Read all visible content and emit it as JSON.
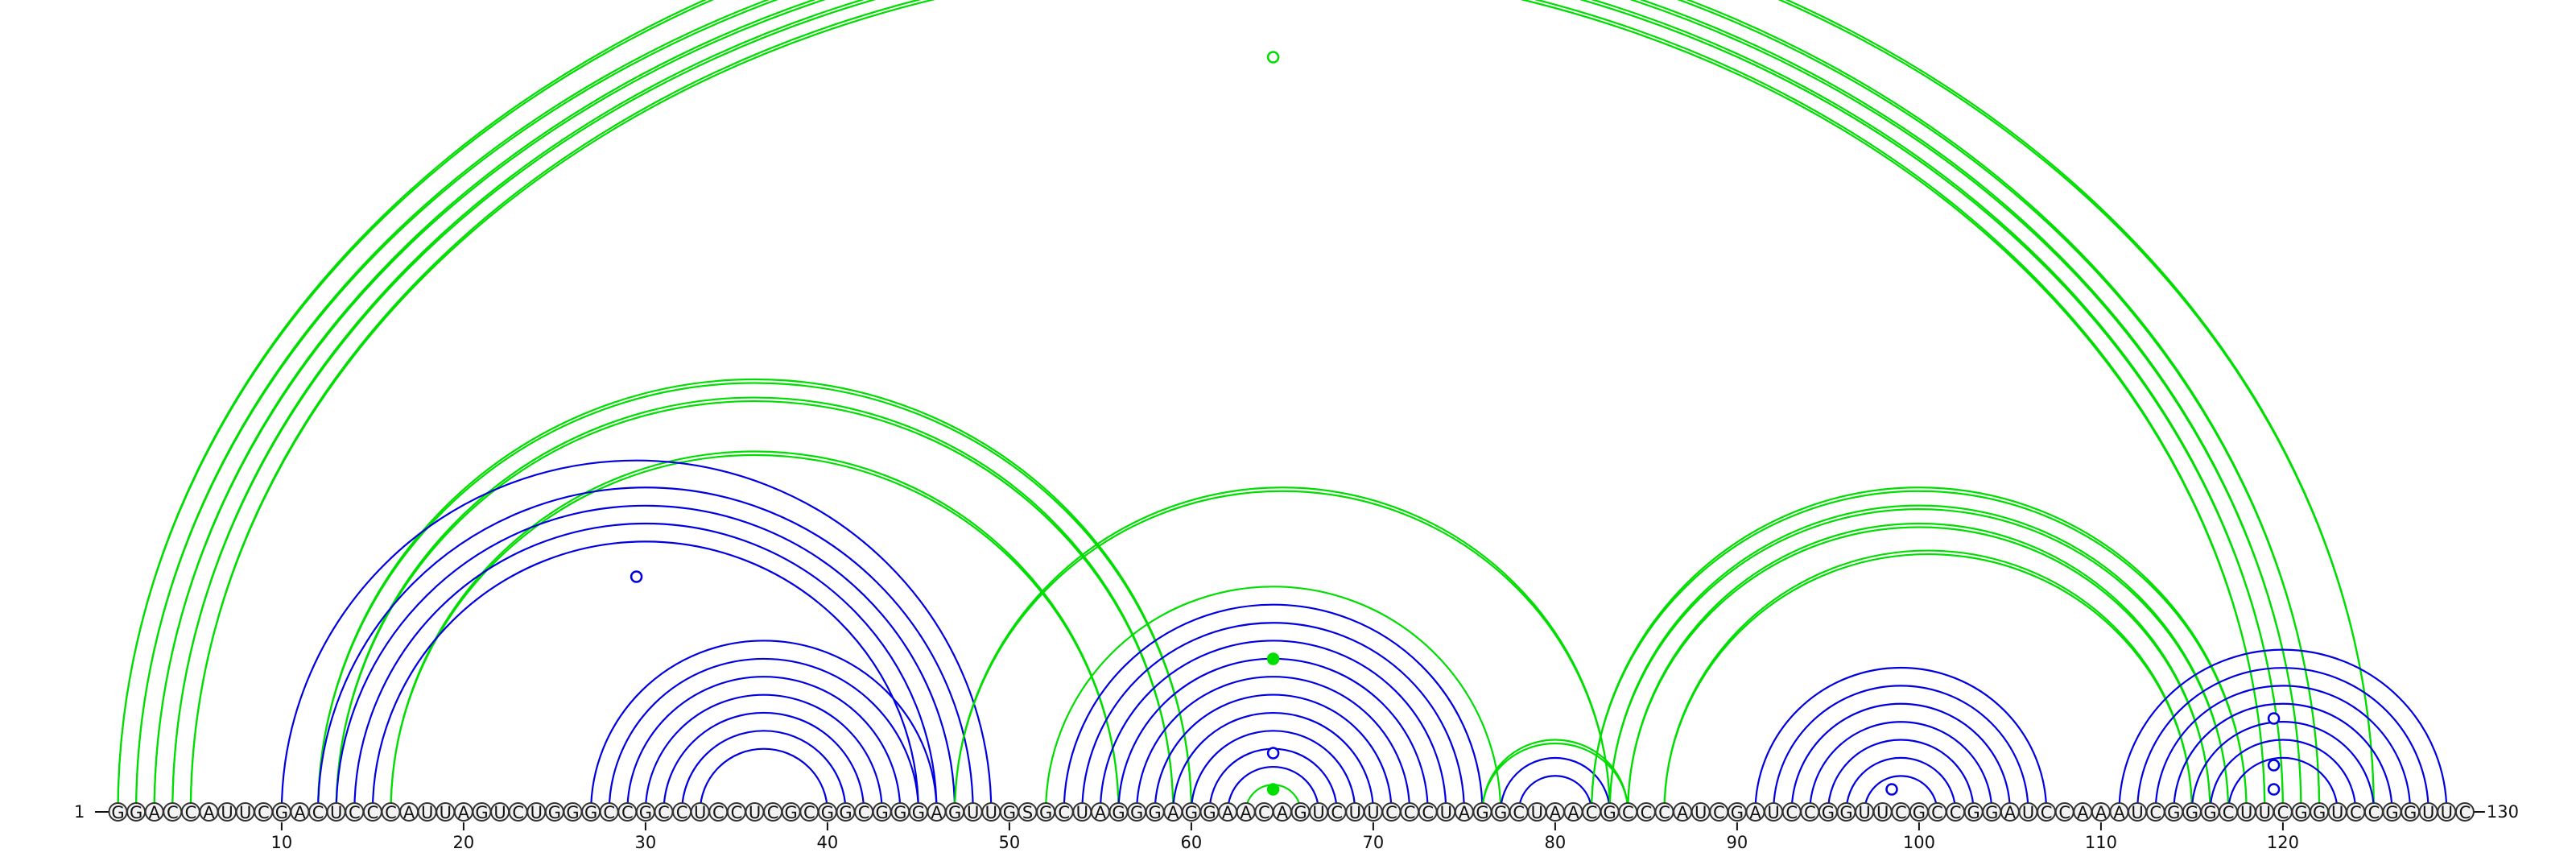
{
  "sequence": "GGACCAUUCGACUCCCAUUAGUCUGGGCCGCCUCCUCGCGGCGGGAGUUGSGCUAGGGAGGAACAGUCUUCCCUAGGCUAACGCCCAUCGAUCCGGUUCGCCGGAUCCAAAUCGGGCUUCGGUCCGGUUC",
  "ends": {
    "start_label": "1",
    "end_label": "130"
  },
  "ticks": [
    10,
    20,
    30,
    40,
    50,
    60,
    70,
    80,
    90,
    100,
    110,
    120
  ],
  "colors": {
    "blue": "#0000e0",
    "green": "#00dd00",
    "node": "#f2f2f2"
  },
  "arc_groups": [
    {
      "color": "green",
      "strand": "double",
      "pairs": [
        [
          1,
          125
        ],
        [
          2,
          122
        ],
        [
          3,
          121
        ],
        [
          4,
          120
        ],
        [
          5,
          119
        ]
      ]
    },
    {
      "color": "green",
      "strand": "double",
      "pairs": [
        [
          12,
          60
        ],
        [
          13,
          59
        ],
        [
          16,
          56
        ]
      ]
    },
    {
      "color": "blue",
      "strand": "single",
      "pairs": [
        [
          10,
          49
        ],
        [
          12,
          48
        ],
        [
          13,
          47
        ],
        [
          14,
          46
        ],
        [
          15,
          45
        ]
      ]
    },
    {
      "color": "blue",
      "strand": "single",
      "pairs": [
        [
          27,
          46
        ],
        [
          28,
          45
        ],
        [
          29,
          44
        ],
        [
          30,
          43
        ],
        [
          31,
          42
        ],
        [
          32,
          41
        ],
        [
          33,
          40
        ]
      ]
    },
    {
      "color": "green",
      "strand": "double",
      "pairs": [
        [
          47,
          83
        ]
      ]
    },
    {
      "color": "green",
      "strand": "single",
      "pairs": [
        [
          52,
          77
        ]
      ]
    },
    {
      "color": "blue",
      "strand": "single",
      "pairs": [
        [
          53,
          76
        ],
        [
          54,
          75
        ],
        [
          55,
          74
        ],
        [
          56,
          73
        ],
        [
          57,
          72
        ],
        [
          58,
          71
        ],
        [
          59,
          70
        ],
        [
          60,
          69
        ],
        [
          61,
          68
        ],
        [
          62,
          67
        ]
      ]
    },
    {
      "color": "green",
      "strand": "single",
      "pairs": [
        [
          63,
          66
        ]
      ]
    },
    {
      "color": "green",
      "strand": "double",
      "pairs": [
        [
          76,
          84
        ]
      ]
    },
    {
      "color": "blue",
      "strand": "single",
      "pairs": [
        [
          77,
          83
        ],
        [
          78,
          82
        ]
      ]
    },
    {
      "color": "green",
      "strand": "double",
      "pairs": [
        [
          82,
          118
        ],
        [
          83,
          117
        ],
        [
          84,
          116
        ],
        [
          86,
          115
        ]
      ]
    },
    {
      "color": "blue",
      "strand": "single",
      "pairs": [
        [
          91,
          107
        ],
        [
          92,
          106
        ],
        [
          93,
          105
        ],
        [
          94,
          104
        ],
        [
          95,
          103
        ],
        [
          96,
          102
        ],
        [
          97,
          101
        ]
      ]
    },
    {
      "color": "blue",
      "strand": "single",
      "pairs": [
        [
          111,
          129
        ],
        [
          112,
          128
        ],
        [
          113,
          127
        ],
        [
          114,
          126
        ],
        [
          115,
          125
        ],
        [
          116,
          124
        ],
        [
          117,
          123
        ]
      ]
    }
  ],
  "markers": [
    {
      "pos": 64.5,
      "level": "top",
      "color": "green",
      "filled": false
    },
    {
      "pos": 29.5,
      "level": 0,
      "color": "blue",
      "filled": false
    },
    {
      "pos": 64.5,
      "level": 1,
      "color": "green",
      "filled": true
    },
    {
      "pos": 64.5,
      "level": 2,
      "color": "blue",
      "filled": false
    },
    {
      "pos": 64.5,
      "level": 3,
      "color": "green",
      "filled": true
    },
    {
      "pos": 98.5,
      "level": 4,
      "color": "blue",
      "filled": false
    },
    {
      "pos": 119.5,
      "level": 5,
      "color": "blue",
      "filled": false
    },
    {
      "pos": 119.5,
      "level": 6,
      "color": "blue",
      "filled": false
    },
    {
      "pos": 119.5,
      "level": 7,
      "color": "blue",
      "filled": false
    }
  ]
}
